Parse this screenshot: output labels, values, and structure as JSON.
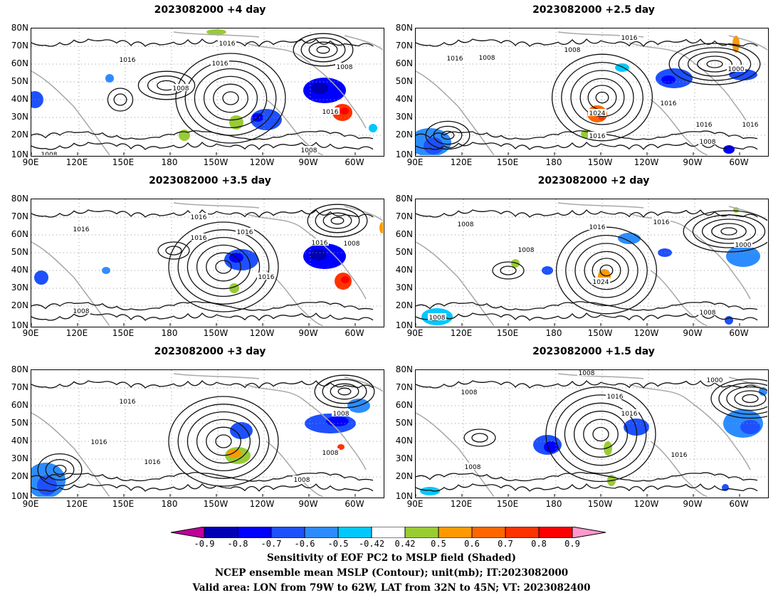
{
  "panels": [
    {
      "title": "2023082000  +4 day"
    },
    {
      "title": "2023082000  +2.5 day"
    },
    {
      "title": "2023082000  +3.5 day"
    },
    {
      "title": "2023082000  +2 day"
    },
    {
      "title": "2023082000  +3 day"
    },
    {
      "title": "2023082000  +1.5 day"
    }
  ],
  "lat_ticks": [
    "80N",
    "70N",
    "60N",
    "50N",
    "40N",
    "30N",
    "20N",
    "10N"
  ],
  "lon_ticks": [
    "90E",
    "120E",
    "150E",
    "180",
    "150W",
    "120W",
    "90W",
    "60W"
  ],
  "colorbar": {
    "labels": [
      "-0.9",
      "-0.8",
      "-0.7",
      "-0.6",
      "-0.5",
      "-0.42",
      "0.42",
      "0.5",
      "0.6",
      "0.7",
      "0.8",
      "0.9"
    ],
    "colors": [
      "#c0009c",
      "#0000b4",
      "#0000ff",
      "#1e50ff",
      "#2c8cff",
      "#00c8ff",
      "#ffffff",
      "#99cc33",
      "#ff9900",
      "#ff6600",
      "#ff3300",
      "#ff0000",
      "#ff99cc"
    ]
  },
  "captions": [
    "Sensitivity of EOF PC2 to MSLP field (Shaded)",
    "NCEP ensemble mean MSLP (Contour); unit(mb); IT:2023082000",
    "Valid area: LON from 79W to 62W, LAT from 32N to 45N; VT: 2023082400"
  ],
  "contour_labels": [
    [
      "1016",
      "1016",
      "1008",
      "1016",
      "1008",
      "1016",
      "1008",
      "1008"
    ],
    [
      "1016",
      "1016",
      "1008",
      "1008",
      "1000",
      "1024",
      "1016",
      "1016",
      "1016",
      "1016",
      "1008"
    ],
    [
      "1016",
      "1016",
      "1016",
      "1016",
      "1008",
      "1016",
      "1016",
      "1008"
    ],
    [
      "1008",
      "1016",
      "1016",
      "1008",
      "1000",
      "1024",
      "1008",
      "1008"
    ],
    [
      "1016",
      "1008",
      "1016",
      "1016",
      "1008",
      "1008"
    ],
    [
      "1008",
      "1008",
      "1016",
      "1016",
      "1000",
      "1016",
      "1008"
    ]
  ]
}
